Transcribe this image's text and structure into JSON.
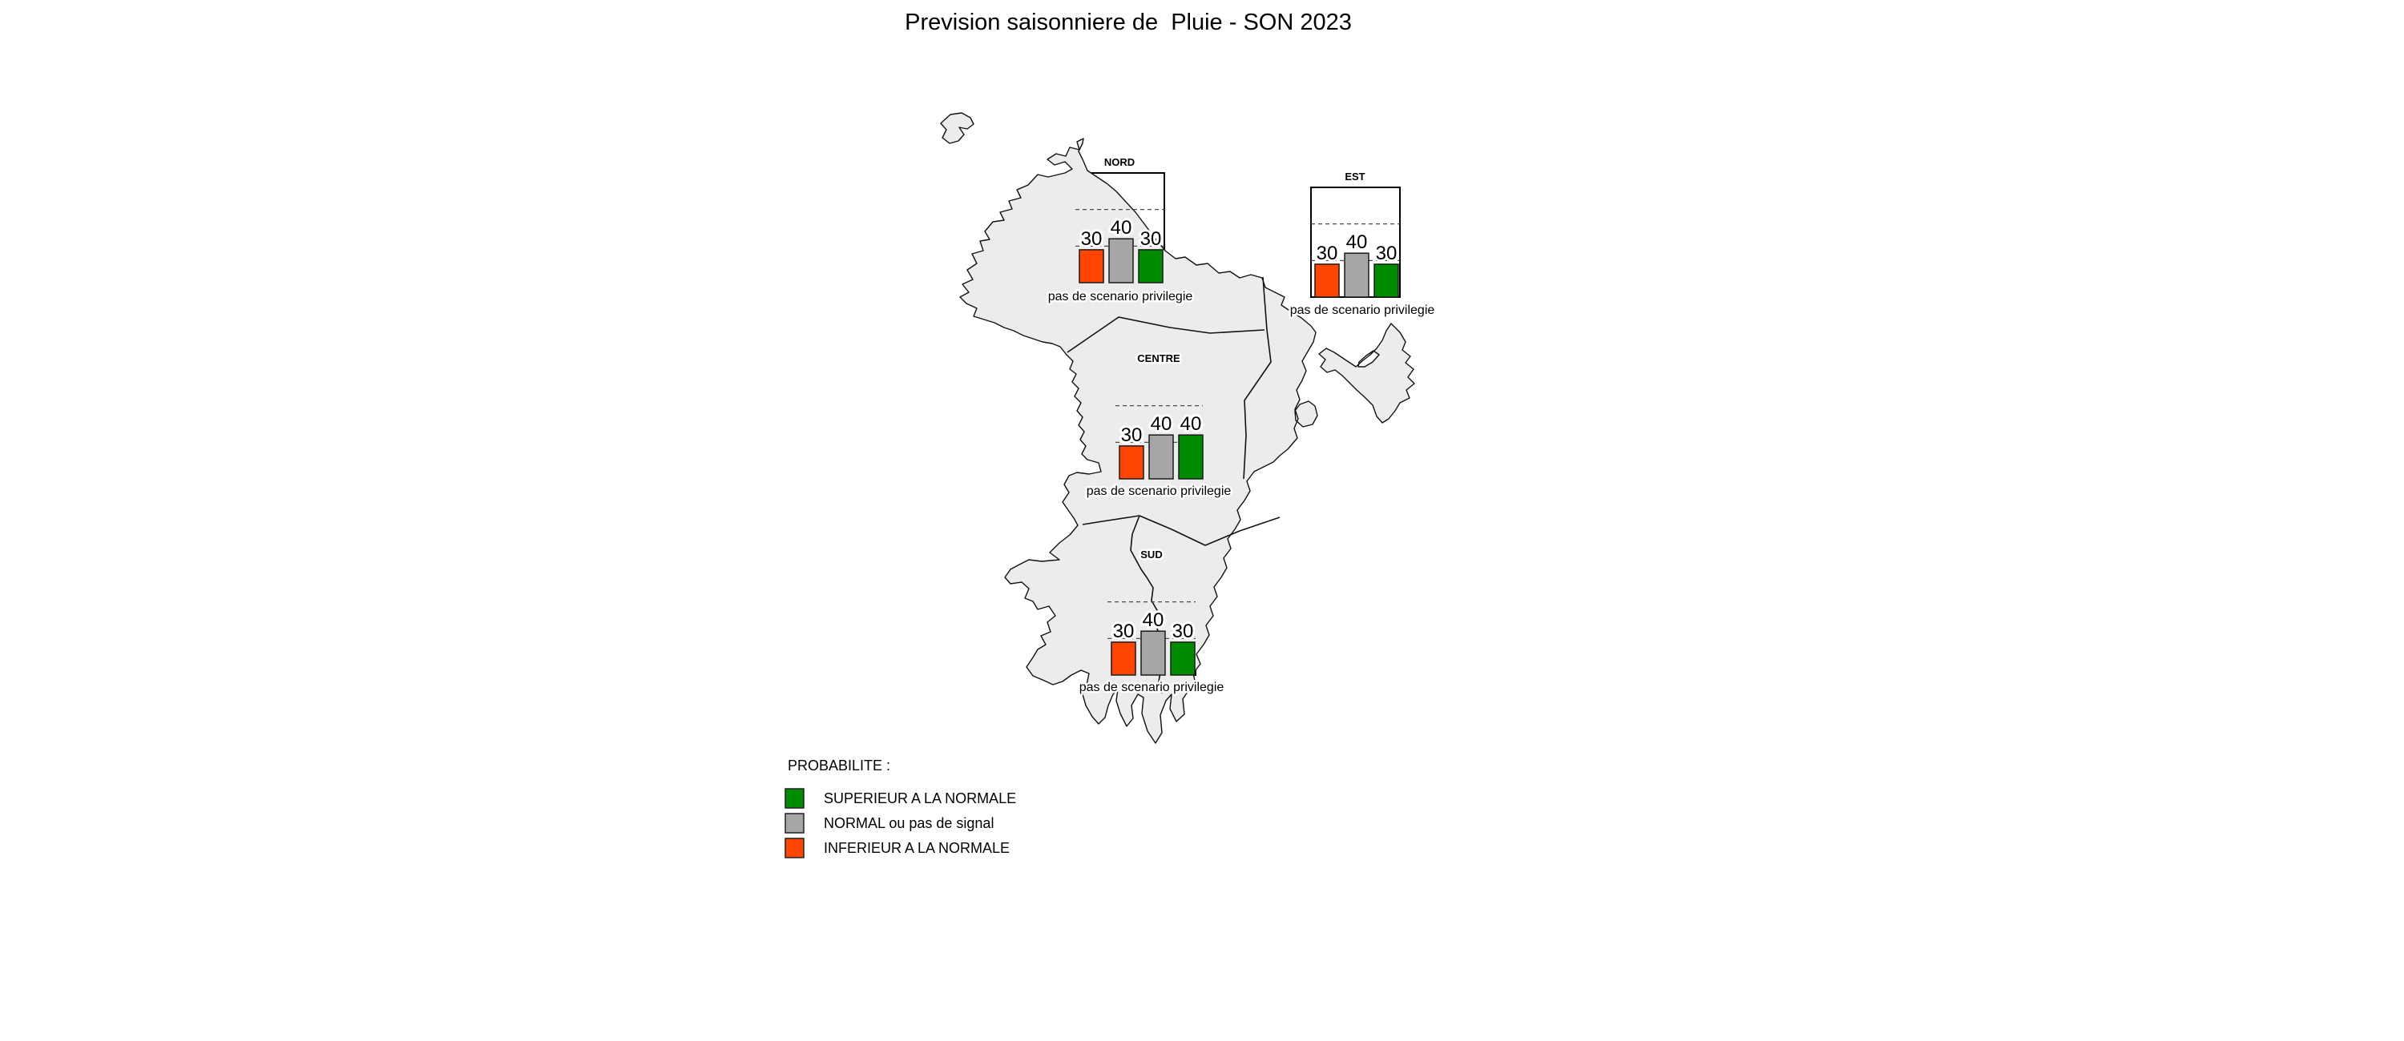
{
  "title": "Prevision saisonniere de  Pluie - SON 2023",
  "bar_colors": [
    "#FF4500",
    "#A6A6A6",
    "#008B00"
  ],
  "chart_data": [
    {
      "type": "bar",
      "region": "NORD",
      "note": "pas de scenario privilegie",
      "categories": [
        "INFERIEUR A LA NORMALE",
        "NORMAL ou pas de signal",
        "SUPERIEUR A LA NORMALE"
      ],
      "values": [
        30,
        40,
        30
      ],
      "ylim": [
        0,
        100
      ],
      "reference_lines": [
        33.3,
        66.7
      ]
    },
    {
      "type": "bar",
      "region": "EST",
      "note": "pas de scenario privilegie",
      "categories": [
        "INFERIEUR A LA NORMALE",
        "NORMAL ou pas de signal",
        "SUPERIEUR A LA NORMALE"
      ],
      "values": [
        30,
        40,
        30
      ],
      "ylim": [
        0,
        100
      ],
      "reference_lines": [
        33.3,
        66.7
      ]
    },
    {
      "type": "bar",
      "region": "CENTRE",
      "note": "pas de scenario privilegie",
      "categories": [
        "INFERIEUR A LA NORMALE",
        "NORMAL ou pas de signal",
        "SUPERIEUR A LA NORMALE"
      ],
      "values": [
        30,
        40,
        40
      ],
      "ylim": [
        0,
        100
      ],
      "reference_lines": [
        33.3,
        66.7
      ]
    },
    {
      "type": "bar",
      "region": "SUD",
      "note": "pas de scenario privilegie",
      "categories": [
        "INFERIEUR A LA NORMALE",
        "NORMAL ou pas de signal",
        "SUPERIEUR A LA NORMALE"
      ],
      "values": [
        30,
        40,
        30
      ],
      "ylim": [
        0,
        100
      ],
      "reference_lines": [
        33.3,
        66.7
      ]
    }
  ],
  "legend": {
    "title": "PROBABILITE :",
    "items": [
      {
        "label": "SUPERIEUR A LA NORMALE",
        "color": "#008B00"
      },
      {
        "label": "NORMAL ou pas de signal",
        "color": "#A6A6A6"
      },
      {
        "label": "INFERIEUR A LA NORMALE",
        "color": "#FF4500"
      }
    ]
  }
}
